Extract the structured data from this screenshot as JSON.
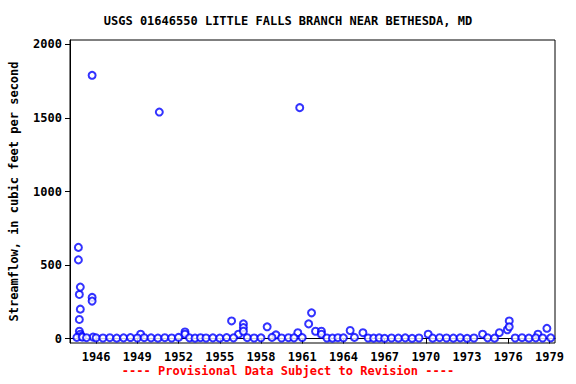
{
  "chart_data": {
    "type": "scatter",
    "title": "USGS 01646550 LITTLE FALLS BRANCH NEAR BETHESDA, MD",
    "subtitle": "---- Provisional Data Subject to Revision ----",
    "y_label": "Streamflow, in cubic feet per second",
    "x": [
      1944.71,
      1944.71,
      1944.78,
      1944.85,
      1944.85,
      1944.78,
      1944.78,
      1944.85,
      1944.92,
      1945.71,
      1945.71,
      1945.71,
      1945.78,
      1949.24,
      1950.6,
      1952.47,
      1952.47,
      1955.86,
      1956.36,
      1956.72,
      1956.72,
      1956.72,
      1958.45,
      1959.09,
      1960.68,
      1960.82,
      1961.47,
      1961.68,
      1961.97,
      1962.4,
      1962.4,
      1964.49,
      1965.42,
      1970.17,
      1974.13,
      1975.35,
      1975.93,
      1976.07,
      1976.07,
      1978.16,
      1978.81,
      1979.09,
      1944.6,
      1945.0,
      1945.3,
      1946.0,
      1946.5,
      1947.0,
      1947.5,
      1948.0,
      1948.5,
      1949.0,
      1949.5,
      1950.0,
      1950.5,
      1951.0,
      1951.5,
      1952.0,
      1952.8,
      1953.2,
      1953.6,
      1954.0,
      1954.5,
      1955.0,
      1955.5,
      1956.0,
      1957.0,
      1957.5,
      1958.0,
      1958.8,
      1959.5,
      1960.0,
      1960.4,
      1961.0,
      1962.8,
      1963.2,
      1963.6,
      1964.0,
      1964.8,
      1965.8,
      1966.2,
      1966.6,
      1967.0,
      1967.5,
      1968.0,
      1968.5,
      1969.0,
      1969.5,
      1970.5,
      1971.0,
      1971.5,
      1972.0,
      1972.5,
      1973.0,
      1973.5,
      1974.5,
      1975.0,
      1976.5,
      1977.0,
      1977.5,
      1978.0,
      1978.5
    ],
    "values": [
      620,
      535,
      300,
      350,
      200,
      130,
      50,
      30,
      15,
      1790,
      280,
      255,
      10,
      30,
      1540,
      45,
      30,
      120,
      30,
      100,
      75,
      50,
      80,
      25,
      40,
      1570,
      100,
      175,
      50,
      50,
      30,
      55,
      40,
      30,
      30,
      40,
      60,
      120,
      80,
      30,
      70,
      5,
      8,
      10,
      6,
      5,
      4,
      6,
      3,
      5,
      7,
      4,
      6,
      5,
      3,
      6,
      4,
      8,
      5,
      3,
      6,
      4,
      5,
      3,
      7,
      5,
      6,
      4,
      5,
      8,
      4,
      6,
      5,
      7,
      4,
      3,
      6,
      5,
      8,
      4,
      3,
      5,
      2,
      4,
      3,
      5,
      2,
      4,
      3,
      6,
      4,
      3,
      5,
      2,
      4,
      5,
      3,
      4,
      6,
      3,
      5,
      4
    ],
    "color": "#0000ff",
    "marker": "circle_open",
    "xlim": [
      1944.1,
      1979.4
    ],
    "xticks": [
      1946,
      1949,
      1952,
      1955,
      1958,
      1961,
      1964,
      1967,
      1970,
      1973,
      1976,
      1979
    ],
    "ylim": [
      -30,
      2030
    ],
    "yticks": [
      0,
      500,
      1000,
      1500,
      2000
    ],
    "grid": false
  }
}
